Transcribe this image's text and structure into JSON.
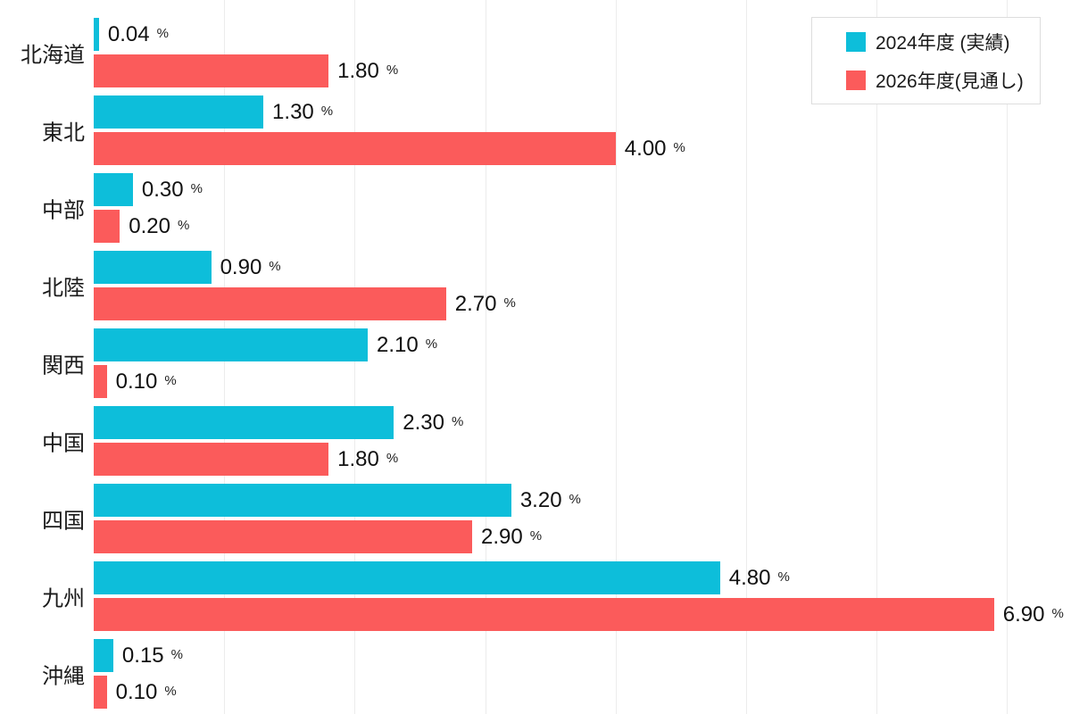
{
  "chart_data": {
    "type": "bar",
    "orientation": "horizontal",
    "title": "",
    "unit": "%",
    "categories": [
      "北海道",
      "東北",
      "中部",
      "北陸",
      "関西",
      "中国",
      "四国",
      "九州",
      "沖縄"
    ],
    "series": [
      {
        "name": "2024年度 (実績)",
        "color": "#0DBEDA",
        "values": [
          0.04,
          1.3,
          0.3,
          0.9,
          2.1,
          2.3,
          3.2,
          4.8,
          0.15
        ],
        "labels": [
          "0.04",
          "1.30",
          "0.30",
          "0.90",
          "2.10",
          "2.30",
          "3.20",
          "4.80",
          "0.15"
        ]
      },
      {
        "name": "2026年度(見通し)",
        "color": "#FB5B5B",
        "values": [
          1.8,
          4.0,
          0.2,
          2.7,
          0.1,
          1.8,
          2.9,
          6.9,
          0.1
        ],
        "labels": [
          "1.80",
          "4.00",
          "0.20",
          "2.70",
          "0.10",
          "1.80",
          "2.90",
          "6.90",
          "0.10"
        ]
      }
    ],
    "xlim": [
      0,
      7.48
    ],
    "gridlines": [
      1,
      2,
      3,
      4,
      5,
      6,
      7
    ],
    "grid": true,
    "grid_color": "#ececec",
    "legend_position": "top-right",
    "value_label_format": "number + smaller % sign"
  },
  "legend": {
    "items": [
      {
        "label": "2024年度 (実績)",
        "color": "#0DBEDA"
      },
      {
        "label": "2026年度(見通し)",
        "color": "#FB5B5B"
      }
    ]
  }
}
